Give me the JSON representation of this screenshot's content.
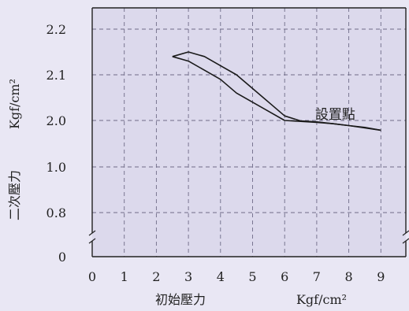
{
  "chart_data": {
    "type": "line",
    "xlabel": "初始壓力",
    "xunit": "Kgf/cm²",
    "ylabel": "二次壓力",
    "yunit": "Kgf/cm²",
    "x_ticks": [
      "0",
      "1",
      "2",
      "3",
      "4",
      "5",
      "6",
      "7",
      "8",
      "9"
    ],
    "y_ticks": [
      "0",
      "0.8",
      "1.0",
      "2.0",
      "2.1",
      "2.2"
    ],
    "xlim": [
      0,
      9.5
    ],
    "axis_break": "between y=0 and y=0.8 on both vertical axes",
    "grid": true,
    "annotation": {
      "text": "設置點",
      "x": 6.9,
      "y": 1.97
    },
    "series": [
      {
        "segment": "upper",
        "x": [
          2.5,
          3.0,
          3.5,
          4.0,
          4.5,
          5.0,
          5.5,
          6.0,
          6.5,
          7.0,
          7.5,
          8.0,
          8.5,
          9.0
        ],
        "y": [
          2.14,
          2.15,
          2.14,
          2.12,
          2.1,
          2.07,
          2.04,
          2.01,
          1.99,
          1.97,
          1.93,
          1.89,
          1.84,
          1.79
        ]
      },
      {
        "segment": "lower",
        "x": [
          2.5,
          3.0,
          3.5,
          4.0,
          4.5,
          5.0,
          5.5,
          6.0,
          6.5,
          7.0,
          7.5,
          8.0,
          8.5,
          9.0
        ],
        "y": [
          2.14,
          2.13,
          2.11,
          2.09,
          2.06,
          2.04,
          2.02,
          2.0,
          1.98,
          1.96,
          1.93,
          1.89,
          1.85,
          1.79
        ]
      }
    ]
  }
}
